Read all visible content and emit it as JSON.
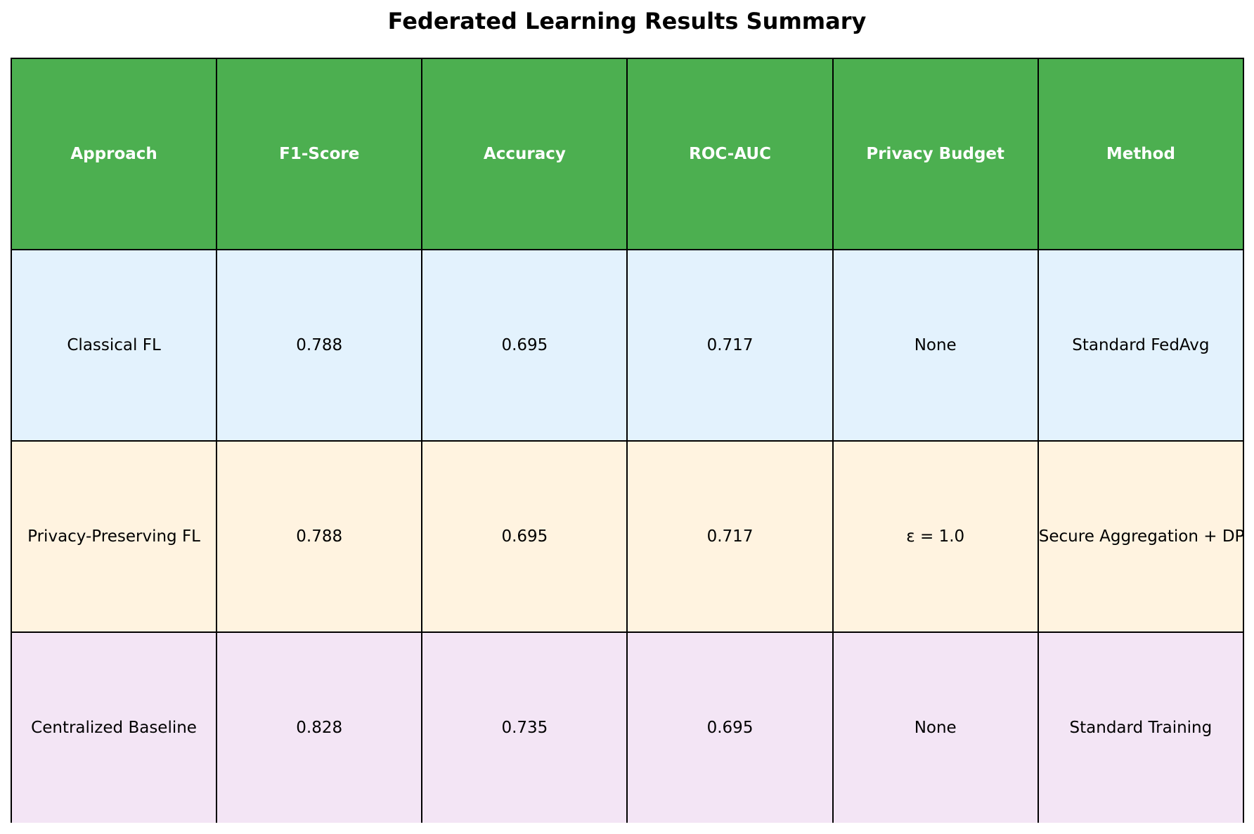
{
  "chart_data": {
    "type": "table",
    "title": "Federated Learning Results Summary",
    "header_color": "#4caf50",
    "header_text_color": "#ffffff",
    "columns": [
      "Approach",
      "F1-Score",
      "Accuracy",
      "ROC-AUC",
      "Privacy Budget",
      "Method"
    ],
    "rows": [
      {
        "color": "#e3f2fd",
        "cells": [
          "Classical FL",
          "0.788",
          "0.695",
          "0.717",
          "None",
          "Standard FedAvg"
        ]
      },
      {
        "color": "#fff3e0",
        "cells": [
          "Privacy-Preserving FL",
          "0.788",
          "0.695",
          "0.717",
          "ε = 1.0",
          "Secure Aggregation + DP"
        ]
      },
      {
        "color": "#f3e5f5",
        "cells": [
          "Centralized Baseline",
          "0.828",
          "0.735",
          "0.695",
          "None",
          "Standard Training"
        ]
      }
    ]
  }
}
